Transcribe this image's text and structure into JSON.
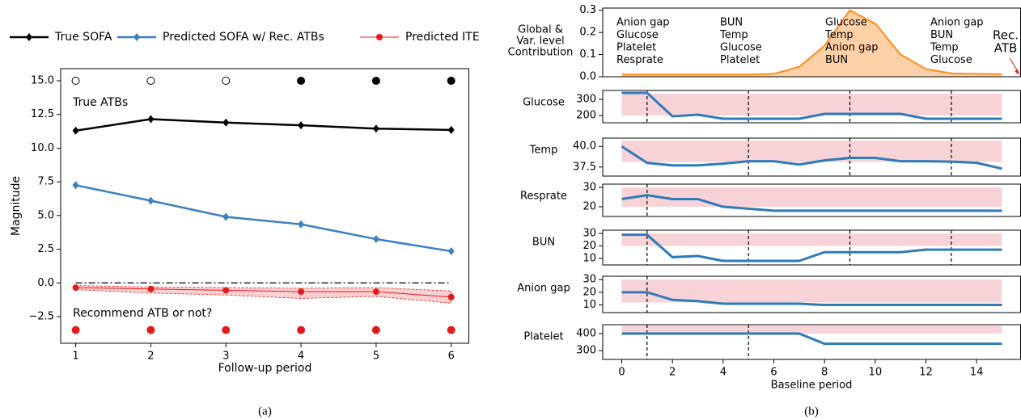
{
  "chart_data": [
    {
      "type": "line",
      "xlabel": "Follow-up period",
      "ylabel": "Magnitude",
      "caption": "(a)",
      "x": [
        1,
        2,
        3,
        4,
        5,
        6
      ],
      "xlim": [
        0.8,
        6.24
      ],
      "ylim": [
        -4.48,
        15.9
      ],
      "xticks": [
        1,
        2,
        3,
        4,
        5,
        6
      ],
      "yticks": [
        {
          "value": -2.5,
          "label": "−2.5"
        },
        {
          "value": 0,
          "label": "0.0"
        },
        {
          "value": 2.5,
          "label": "2.5"
        },
        {
          "value": 5,
          "label": "5.0"
        },
        {
          "value": 7.5,
          "label": "7.5"
        },
        {
          "value": 10,
          "label": "10.0"
        },
        {
          "value": 12.5,
          "label": "12.5"
        },
        {
          "value": 15,
          "label": "15.0"
        }
      ],
      "series": [
        {
          "name": "True SOFA",
          "color": "#000000",
          "marker": "diamond",
          "values": [
            11.3,
            12.15,
            11.9,
            11.7,
            11.45,
            11.35
          ]
        },
        {
          "name": "Predicted SOFA w/ Rec. ATBs",
          "color": "#3a7fbf",
          "marker": "diamond",
          "values": [
            7.25,
            6.1,
            4.9,
            4.35,
            3.25,
            2.35
          ]
        },
        {
          "name": "Predicted ITE",
          "color": "#e31a1c",
          "marker": "circle",
          "values": [
            -0.35,
            -0.45,
            -0.55,
            -0.65,
            -0.65,
            -1.05
          ],
          "band_lower": [
            -0.5,
            -0.75,
            -0.9,
            -1.15,
            -1.0,
            -1.5
          ],
          "band_upper": [
            -0.2,
            -0.3,
            -0.35,
            -0.4,
            -0.35,
            -0.6
          ]
        }
      ],
      "marker_rows": [
        {
          "label": "True ATBs",
          "color": "#000000",
          "values": [
            15,
            15,
            15,
            15,
            15,
            15
          ],
          "filled": [
            false,
            false,
            false,
            true,
            true,
            true
          ]
        },
        {
          "label": "Recommend ATB or not?",
          "color": "#e31a1c",
          "values": [
            -3.5,
            -3.5,
            -3.5,
            -3.5,
            -3.5,
            -3.5
          ],
          "filled": [
            true,
            true,
            true,
            true,
            true,
            true
          ]
        }
      ],
      "hline": 0
    },
    {
      "type": "area",
      "ylabel": [
        "Global &",
        "Var. level",
        "Contribution"
      ],
      "caption": "(b)",
      "color": "#ff8c1a",
      "fill": "#fdd0a8",
      "x": [
        0,
        1,
        2,
        3,
        4,
        5,
        6,
        7,
        8,
        9,
        10,
        11,
        12,
        13,
        14,
        15
      ],
      "values": [
        0.01,
        0.01,
        0.01,
        0.01,
        0.01,
        0.01,
        0.013,
        0.045,
        0.14,
        0.3,
        0.24,
        0.1,
        0.035,
        0.015,
        0.013,
        0.012
      ],
      "xlim": [
        -0.75,
        15.75
      ],
      "ylim": [
        0,
        0.31
      ],
      "yticks": [
        {
          "value": 0,
          "label": "0.0"
        },
        0.1,
        0.2,
        0.3
      ],
      "annotations": [
        [
          "Anion gap",
          "Glucose",
          "Platelet",
          "Resprate"
        ],
        [
          "BUN",
          "Temp",
          "Glucose",
          "Platelet"
        ],
        [
          "Glucose",
          "Temp",
          "Anion gap",
          "BUN"
        ],
        [
          "Anion gap",
          "BUN",
          "Temp",
          "Glucose"
        ]
      ],
      "rec_label": [
        "Rec.",
        "ATB"
      ]
    },
    {
      "type": "line",
      "ylabel": "Glucose",
      "color": "#2f7ab8",
      "band_color": "#f7d3d8",
      "x": [
        0,
        1,
        2,
        3,
        4,
        5,
        6,
        7,
        8,
        9,
        10,
        11,
        12,
        13,
        14,
        15
      ],
      "values": [
        340,
        340,
        195,
        205,
        180,
        180,
        180,
        180,
        210,
        210,
        210,
        210,
        180,
        180,
        180,
        180
      ],
      "band": [
        200,
        335
      ],
      "vlines": [
        1,
        5,
        9,
        13
      ],
      "xlim": [
        -0.75,
        15.75
      ],
      "ylim": [
        155,
        355
      ],
      "yticks": [
        200,
        300
      ]
    },
    {
      "type": "line",
      "ylabel": "Temp",
      "color": "#2f7ab8",
      "band_color": "#f7d3d8",
      "x": [
        0,
        1,
        2,
        3,
        4,
        5,
        6,
        7,
        8,
        9,
        10,
        11,
        12,
        13,
        14,
        15
      ],
      "values": [
        40.0,
        38.0,
        37.7,
        37.7,
        37.9,
        38.2,
        38.2,
        37.8,
        38.3,
        38.6,
        38.6,
        38.2,
        38.2,
        38.15,
        38.0,
        37.3
      ],
      "band": [
        38.1,
        40.7
      ],
      "vlines": [
        5,
        9,
        13
      ],
      "xlim": [
        -0.75,
        15.75
      ],
      "ylim": [
        36.4,
        41
      ],
      "yticks": [
        37.5,
        {
          "value": 40,
          "label": "40.0"
        }
      ]
    },
    {
      "type": "line",
      "ylabel": "Resprate",
      "color": "#2f7ab8",
      "band_color": "#f7d3d8",
      "x": [
        0,
        1,
        2,
        3,
        4,
        5,
        6,
        7,
        8,
        9,
        10,
        11,
        12,
        13,
        14,
        15
      ],
      "values": [
        24,
        26,
        24,
        24,
        20,
        19,
        18,
        18,
        18,
        18,
        18,
        18,
        18,
        18,
        18,
        18
      ],
      "band": [
        20,
        30
      ],
      "vlines": [
        1
      ],
      "xlim": [
        -0.75,
        15.75
      ],
      "ylim": [
        15,
        31.7
      ],
      "yticks": [
        20,
        30
      ]
    },
    {
      "type": "line",
      "ylabel": "BUN",
      "color": "#2f7ab8",
      "band_color": "#f7d3d8",
      "x": [
        0,
        1,
        2,
        3,
        4,
        5,
        6,
        7,
        8,
        9,
        10,
        11,
        12,
        13,
        14,
        15
      ],
      "values": [
        29,
        29,
        11,
        12,
        8,
        8,
        8,
        8,
        15,
        15,
        15,
        15,
        17,
        17,
        17,
        17
      ],
      "band": [
        20,
        30
      ],
      "vlines": [
        1,
        5,
        9,
        13
      ],
      "xlim": [
        -0.75,
        15.75
      ],
      "ylim": [
        4.8,
        32.6
      ],
      "yticks": [
        10,
        20,
        30
      ]
    },
    {
      "type": "line",
      "ylabel": "Anion gap",
      "color": "#2f7ab8",
      "band_color": "#f7d3d8",
      "x": [
        0,
        1,
        2,
        3,
        4,
        5,
        6,
        7,
        8,
        9,
        10,
        11,
        12,
        13,
        14,
        15
      ],
      "values": [
        20,
        20,
        14,
        13,
        11,
        11,
        11,
        11,
        10,
        10,
        10,
        10,
        10,
        10,
        10,
        10
      ],
      "band": [
        12,
        30
      ],
      "vlines": [
        1
      ],
      "xlim": [
        -0.75,
        15.75
      ],
      "ylim": [
        4,
        32.6
      ],
      "yticks": [
        10,
        20,
        30
      ]
    },
    {
      "type": "line",
      "ylabel": "Platelet",
      "color": "#2f7ab8",
      "band_color": "#f7d3d8",
      "xlabel": "Baseline period",
      "x": [
        0,
        1,
        2,
        3,
        4,
        5,
        6,
        7,
        8,
        9,
        10,
        11,
        12,
        13,
        14,
        15
      ],
      "values": [
        400,
        400,
        400,
        400,
        400,
        400,
        400,
        400,
        340,
        340,
        340,
        340,
        340,
        340,
        340,
        340
      ],
      "band": [
        400,
        445
      ],
      "vlines": [
        1,
        5
      ],
      "xlim": [
        -0.75,
        15.75
      ],
      "ylim": [
        248,
        452
      ],
      "yticks": [
        300,
        400
      ],
      "xticks": [
        0,
        2,
        4,
        6,
        8,
        10,
        12,
        14
      ]
    }
  ]
}
